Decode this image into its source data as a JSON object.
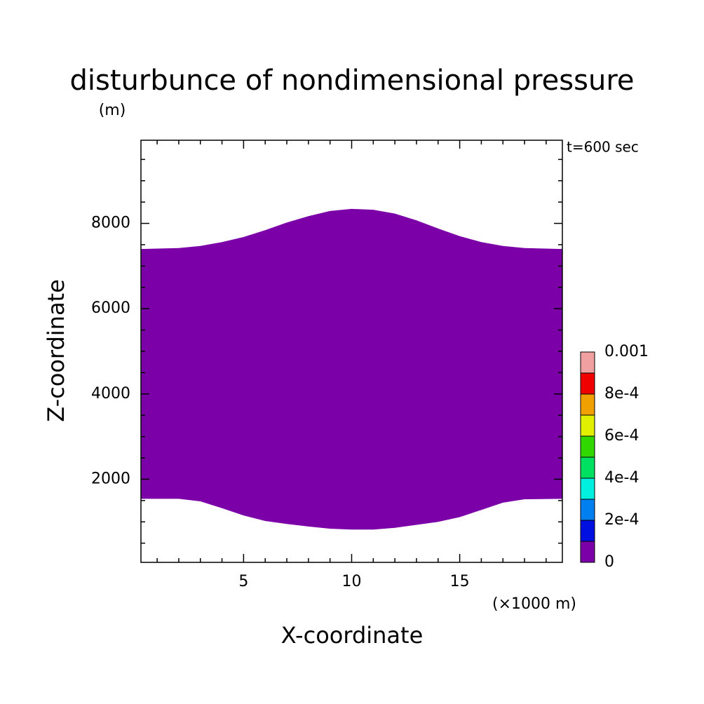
{
  "chart_data": {
    "type": "contour",
    "title": "disturbunce of nondimensional pressure",
    "y_unit": "(m)",
    "annotation": "t=600 sec",
    "x_unit": "(×1000 m)",
    "xlabel": "X-coordinate",
    "ylabel": "Z-coordinate",
    "xlim": [
      0.25,
      19.75
    ],
    "xticks": [
      5,
      10,
      15
    ],
    "xminorticks": [
      1,
      2,
      3,
      4,
      6,
      7,
      8,
      9,
      11,
      12,
      13,
      14,
      16,
      17,
      18,
      19
    ],
    "ylim": [
      50,
      9950
    ],
    "yticks": [
      2000,
      4000,
      6000,
      8000
    ],
    "yminorticks": [
      500,
      1000,
      1500,
      2500,
      3000,
      3500,
      4500,
      5000,
      5500,
      6500,
      7000,
      7500,
      8500,
      9000,
      9500
    ],
    "region": {
      "color": "#7b00a8",
      "x": [
        0.25,
        2,
        3,
        4,
        5,
        6,
        7,
        8,
        9,
        10,
        11,
        12,
        13,
        14,
        15,
        16,
        17,
        18,
        19.75
      ],
      "upper": [
        7400,
        7420,
        7470,
        7560,
        7680,
        7840,
        8020,
        8170,
        8290,
        8340,
        8320,
        8230,
        8070,
        7880,
        7700,
        7560,
        7470,
        7420,
        7400
      ],
      "lower": [
        1540,
        1540,
        1480,
        1320,
        1150,
        1020,
        950,
        890,
        840,
        820,
        820,
        860,
        930,
        1000,
        1110,
        1280,
        1450,
        1530,
        1540
      ]
    },
    "colorbar": {
      "levels": [
        0,
        0.0001,
        0.0002,
        0.0003,
        0.0004,
        0.0005,
        0.0006,
        0.0007,
        0.0008,
        0.0009,
        0.001
      ],
      "colors": [
        "#7b00a8",
        "#0010e0",
        "#0080f0",
        "#00f0e0",
        "#00e060",
        "#30d800",
        "#e0f000",
        "#f0a000",
        "#f00000",
        "#f0a0a0"
      ],
      "ticks": [
        0,
        {
          "value": 0.0002,
          "label": "2e-4"
        },
        {
          "value": 0.0004,
          "label": "4e-4"
        },
        {
          "value": 0.0006,
          "label": "6e-4"
        },
        {
          "value": 0.0008,
          "label": "8e-4"
        },
        0.001
      ]
    }
  }
}
